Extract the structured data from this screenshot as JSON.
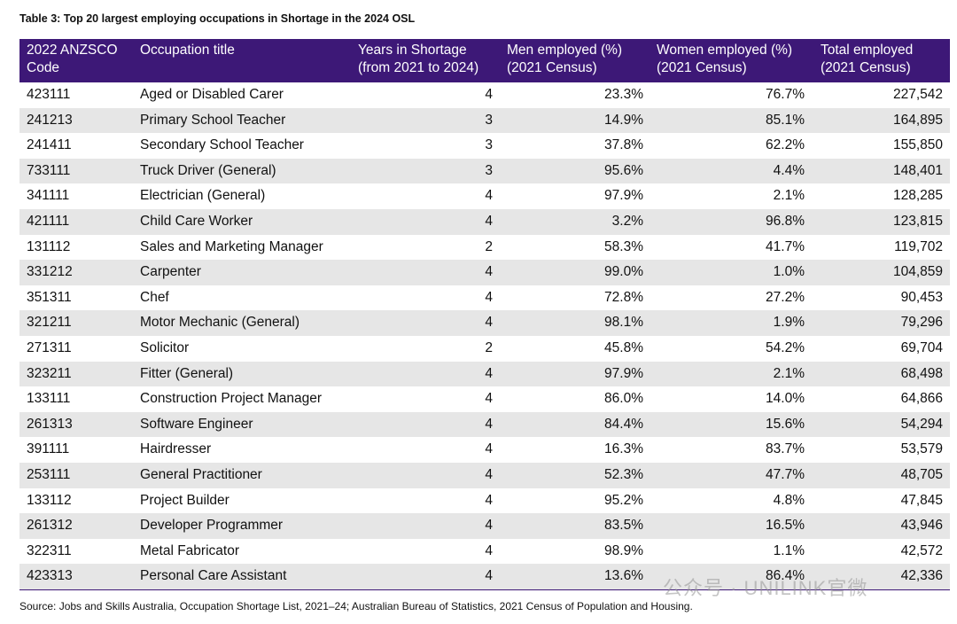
{
  "header": {
    "title": "Table 3: Top 20 largest employing occupations in Shortage in the 2024 OSL"
  },
  "table": {
    "columns": [
      [
        "2022 ANZSCO",
        "Code"
      ],
      [
        "Occupation title"
      ],
      [
        "Years in Shortage",
        "(from 2021 to 2024)"
      ],
      [
        "Men employed (%)",
        "(2021 Census)"
      ],
      [
        "Women employed (%)",
        "(2021 Census)"
      ],
      [
        "Total employed",
        "(2021 Census)"
      ]
    ],
    "rows": [
      [
        "423111",
        "Aged or Disabled Carer",
        "4",
        "23.3%",
        "76.7%",
        "227,542"
      ],
      [
        "241213",
        "Primary School Teacher",
        "3",
        "14.9%",
        "85.1%",
        "164,895"
      ],
      [
        "241411",
        "Secondary School Teacher",
        "3",
        "37.8%",
        "62.2%",
        "155,850"
      ],
      [
        "733111",
        "Truck Driver (General)",
        "3",
        "95.6%",
        "4.4%",
        "148,401"
      ],
      [
        "341111",
        "Electrician (General)",
        "4",
        "97.9%",
        "2.1%",
        "128,285"
      ],
      [
        "421111",
        "Child Care Worker",
        "4",
        "3.2%",
        "96.8%",
        "123,815"
      ],
      [
        "131112",
        "Sales and Marketing Manager",
        "2",
        "58.3%",
        "41.7%",
        "119,702"
      ],
      [
        "331212",
        "Carpenter",
        "4",
        "99.0%",
        "1.0%",
        "104,859"
      ],
      [
        "351311",
        "Chef",
        "4",
        "72.8%",
        "27.2%",
        "90,453"
      ],
      [
        "321211",
        "Motor Mechanic (General)",
        "4",
        "98.1%",
        "1.9%",
        "79,296"
      ],
      [
        "271311",
        "Solicitor",
        "2",
        "45.8%",
        "54.2%",
        "69,704"
      ],
      [
        "323211",
        "Fitter (General)",
        "4",
        "97.9%",
        "2.1%",
        "68,498"
      ],
      [
        "133111",
        "Construction Project Manager",
        "4",
        "86.0%",
        "14.0%",
        "64,866"
      ],
      [
        "261313",
        "Software Engineer",
        "4",
        "84.4%",
        "15.6%",
        "54,294"
      ],
      [
        "391111",
        "Hairdresser",
        "4",
        "16.3%",
        "83.7%",
        "53,579"
      ],
      [
        "253111",
        "General Practitioner",
        "4",
        "52.3%",
        "47.7%",
        "48,705"
      ],
      [
        "133112",
        "Project Builder",
        "4",
        "95.2%",
        "4.8%",
        "47,845"
      ],
      [
        "261312",
        "Developer Programmer",
        "4",
        "83.5%",
        "16.5%",
        "43,946"
      ],
      [
        "322311",
        "Metal Fabricator",
        "4",
        "98.9%",
        "1.1%",
        "42,572"
      ],
      [
        "423313",
        "Personal Care Assistant",
        "4",
        "13.6%",
        "86.4%",
        "42,336"
      ]
    ]
  },
  "footer": {
    "source": "Source: Jobs and Skills Australia, Occupation Shortage List, 2021–24; Australian Bureau of Statistics, 2021 Census of Population and Housing."
  },
  "watermark": "公众号 · UNILINK官微"
}
